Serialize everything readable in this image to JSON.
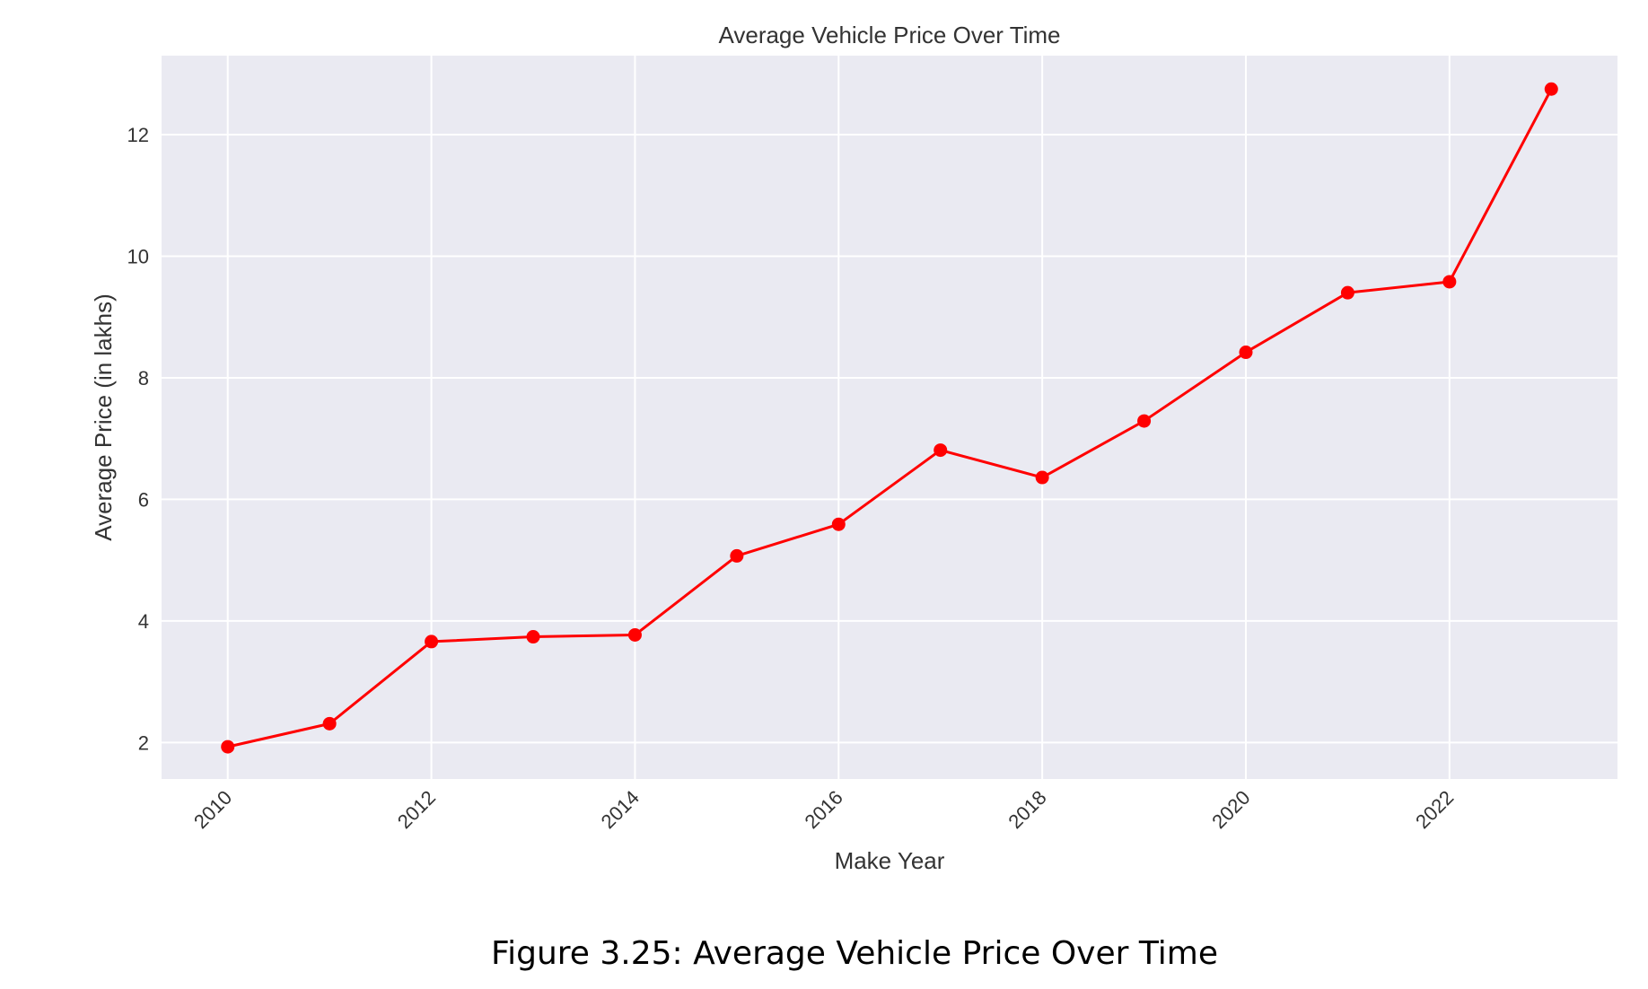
{
  "chart_data": {
    "type": "line",
    "title": "Average Vehicle Price Over Time",
    "xlabel": "Make Year",
    "ylabel": "Average Price (in lakhs)",
    "xlim": [
      2009.35,
      2023.65
    ],
    "ylim": [
      1.4,
      13.3
    ],
    "x_ticks": [
      2010,
      2012,
      2014,
      2016,
      2018,
      2020,
      2022
    ],
    "y_ticks": [
      2,
      4,
      6,
      8,
      10,
      12
    ],
    "grid": true,
    "series": [
      {
        "x": [
          2010,
          2011,
          2012,
          2013,
          2014,
          2015,
          2016,
          2017,
          2018,
          2019,
          2020,
          2021,
          2022,
          2023
        ],
        "y": [
          1.93,
          2.31,
          3.66,
          3.74,
          3.77,
          5.07,
          5.59,
          6.81,
          6.36,
          7.29,
          8.42,
          9.4,
          9.58,
          12.75
        ],
        "color": "#ff0000",
        "marker": "circle"
      }
    ],
    "background_color": "#eaeaf2",
    "grid_color": "#ffffff"
  },
  "caption": "Figure 3.25: Average Vehicle Price Over Time"
}
